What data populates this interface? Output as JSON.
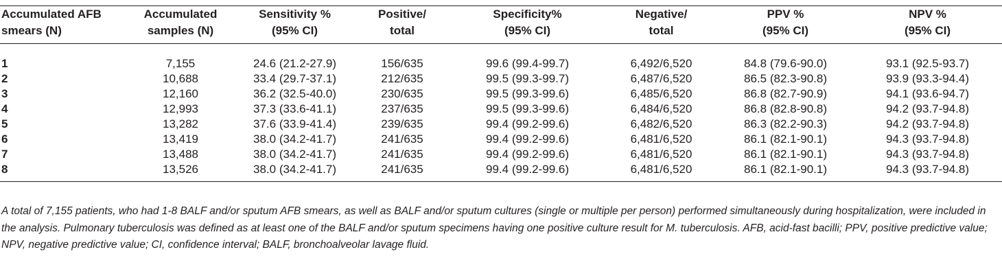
{
  "table": {
    "columns": [
      {
        "line1": "Accumulated AFB",
        "line2": "smears (N)"
      },
      {
        "line1": "Accumulated",
        "line2": "samples (N)"
      },
      {
        "line1": "Sensitivity %",
        "line2": "(95% CI)"
      },
      {
        "line1": "Positive/",
        "line2": "total"
      },
      {
        "line1": "Specificity%",
        "line2": "(95% CI)"
      },
      {
        "line1": "Negative/",
        "line2": "total"
      },
      {
        "line1": "PPV %",
        "line2": "(95% CI)"
      },
      {
        "line1": "NPV %",
        "line2": "(95% CI)"
      }
    ],
    "rows": [
      [
        "1",
        "7,155",
        "24.6 (21.2-27.9)",
        "156/635",
        "99.6 (99.4-99.7)",
        "6,492/6,520",
        "84.8 (79.6-90.0)",
        "93.1 (92.5-93.7)"
      ],
      [
        "2",
        "10,688",
        "33.4 (29.7-37.1)",
        "212/635",
        "99.5 (99.3-99.7)",
        "6,487/6,520",
        "86.5 (82.3-90.8)",
        "93.9 (93.3-94.4)"
      ],
      [
        "3",
        "12,160",
        "36.2 (32.5-40.0)",
        "230/635",
        "99.5 (99.3-99.6)",
        "6,485/6,520",
        "86.8 (82.7-90.9)",
        "94.1 (93.6-94.7)"
      ],
      [
        "4",
        "12,993",
        "37.3 (33.6-41.1)",
        "237/635",
        "99.5 (99.3-99.6)",
        "6,484/6,520",
        "86.8 (82.8-90.8)",
        "94.2 (93.7-94.8)"
      ],
      [
        "5",
        "13,282",
        "37.6 (33.9-41.4)",
        "239/635",
        "99.4 (99.2-99.6)",
        "6,482/6,520",
        "86.3 (82.2-90.3)",
        "94.2 (93.7-94.8)"
      ],
      [
        "6",
        "13,419",
        "38.0 (34.2-41.7)",
        "241/635",
        "99.4 (99.2-99.6)",
        "6,481/6,520",
        "86.1 (82.1-90.1)",
        "94.3 (93.7-94.8)"
      ],
      [
        "7",
        "13,488",
        "38.0 (34.2-41.7)",
        "241/635",
        "99.4 (99.2-99.6)",
        "6,481/6,520",
        "86.1 (82.1-90.1)",
        "94.3 (93.7-94.8)"
      ],
      [
        "8",
        "13,526",
        "38.0 (34.2-41.7)",
        "241/635",
        "99.4 (99.2-99.6)",
        "6,481/6,520",
        "86.1 (82.1-90.1)",
        "94.3 (93.7-94.8)"
      ]
    ]
  },
  "footnote": "A total of 7,155 patients, who had 1-8 BALF and/or sputum AFB smears, as well as BALF and/or sputum cultures (single or multiple per person) performed simultaneously during hospitalization, were included in the analysis. Pulmonary tuberculosis was defined as at least one of the BALF and/or sputum specimens having one positive culture result for M. tuberculosis. AFB, acid-fast bacilli; PPV, positive predictive value; NPV, negative predictive value; CI, confidence interval; BALF, bronchoalveolar lavage fluid."
}
